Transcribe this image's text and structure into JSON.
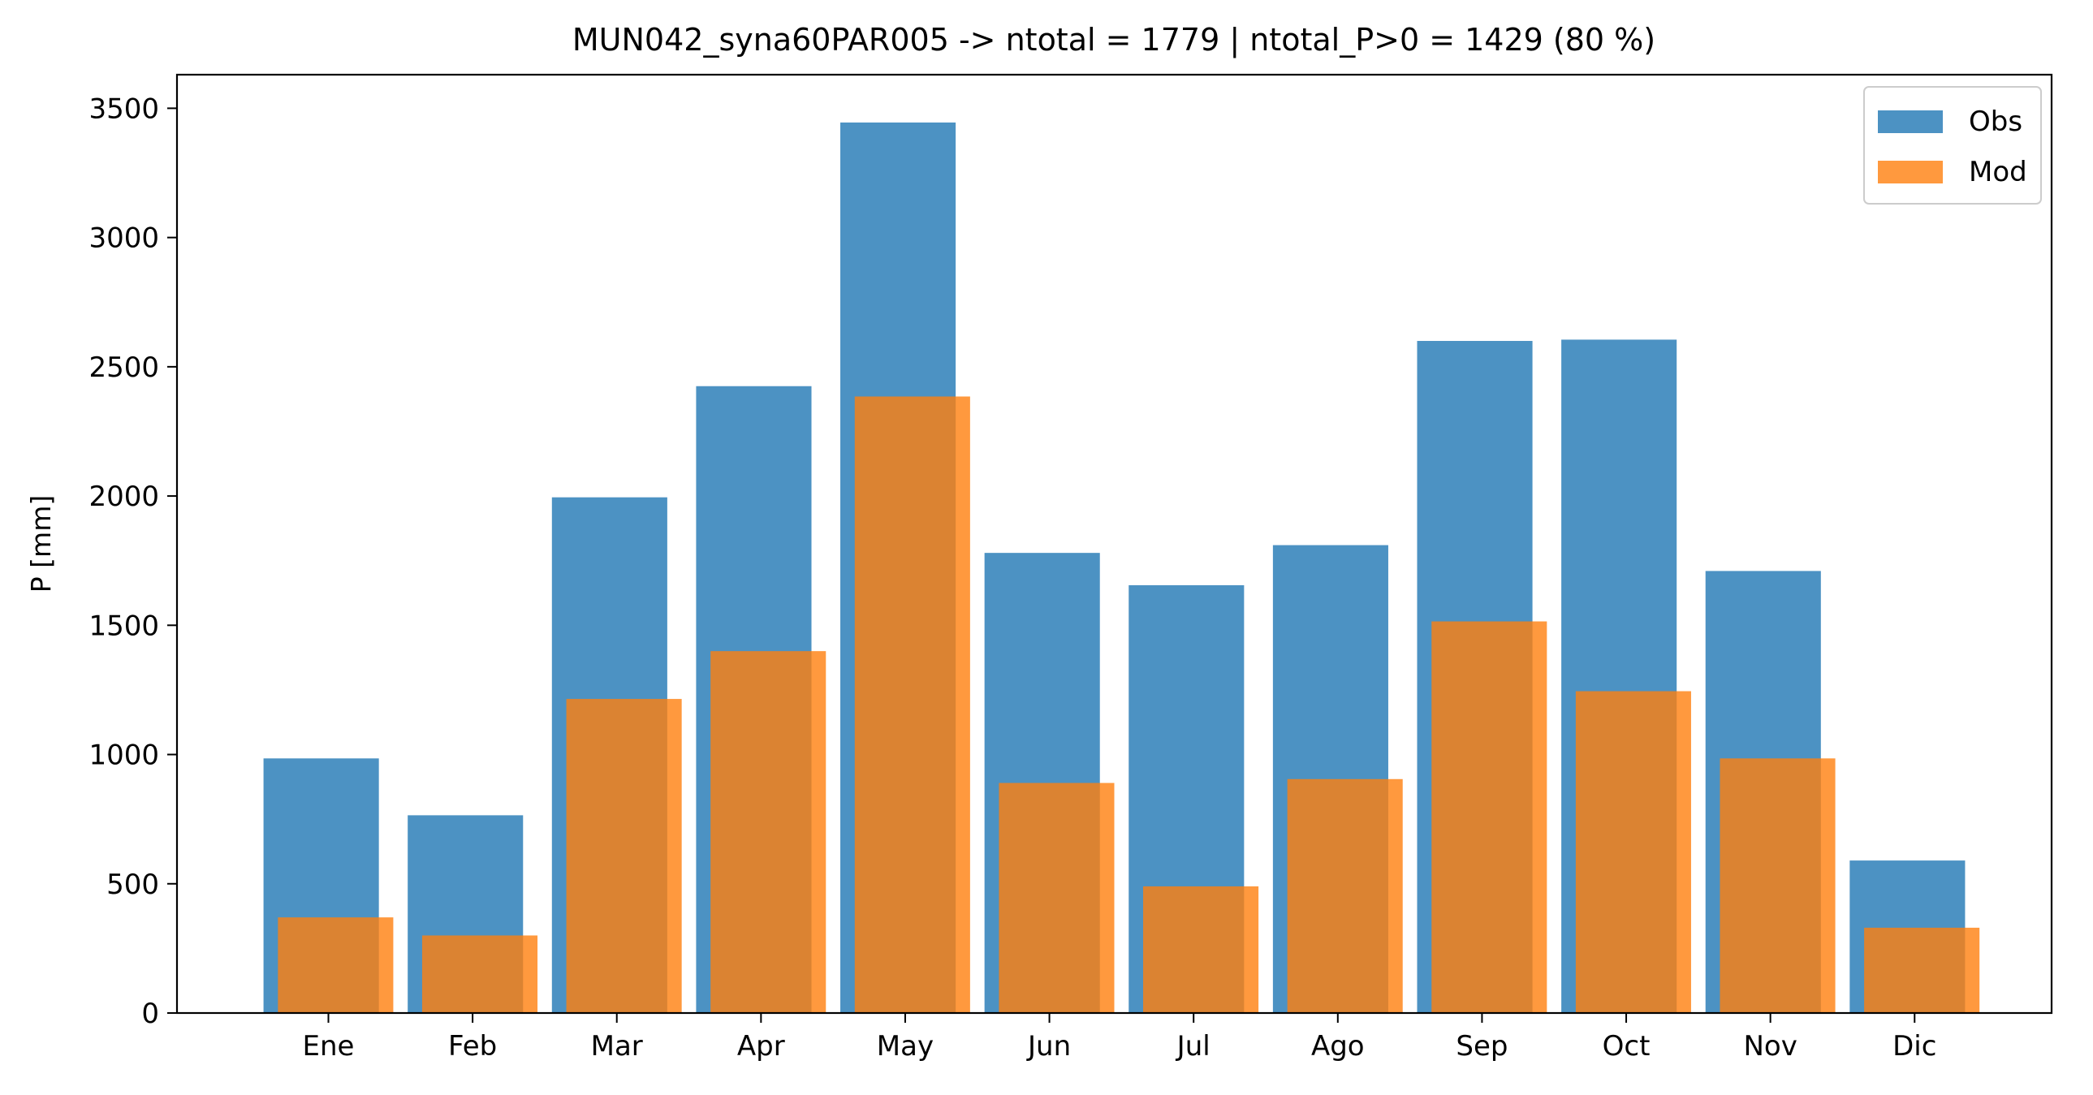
{
  "chart_data": {
    "type": "bar",
    "title": "MUN042_syna60PAR005 -> ntotal = 1779 | ntotal_P>0 = 1429 (80 %)",
    "xlabel": "",
    "ylabel": "P [mm]",
    "categories": [
      "Ene",
      "Feb",
      "Mar",
      "Apr",
      "May",
      "Jun",
      "Jul",
      "Ago",
      "Sep",
      "Oct",
      "Nov",
      "Dic"
    ],
    "series": [
      {
        "name": "Obs",
        "color": "#1f77b4",
        "opacity": 0.8,
        "values": [
          985,
          765,
          1995,
          2425,
          3445,
          1780,
          1655,
          1810,
          2600,
          2605,
          1710,
          590
        ]
      },
      {
        "name": "Mod",
        "color": "#ff7f0e",
        "opacity": 0.8,
        "values": [
          370,
          300,
          1215,
          1400,
          2385,
          890,
          490,
          905,
          1515,
          1245,
          985,
          330
        ]
      }
    ],
    "ylim": [
      0,
      3630
    ],
    "yticks": [
      0,
      500,
      1000,
      1500,
      2000,
      2500,
      3000,
      3500
    ],
    "grid": false,
    "legend": {
      "position": "top-right"
    }
  }
}
